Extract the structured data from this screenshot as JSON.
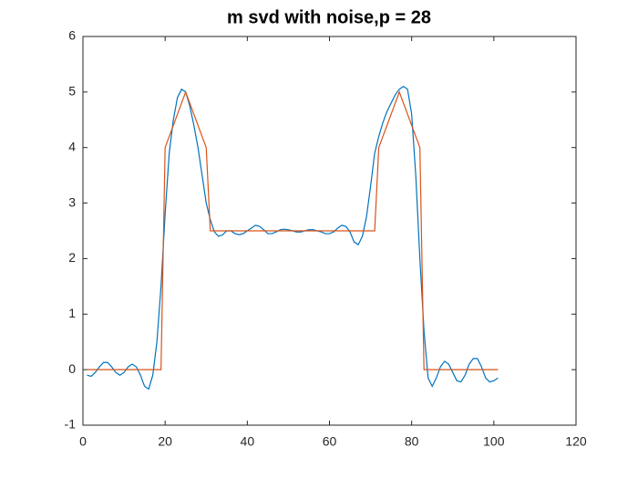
{
  "chart_data": {
    "type": "line",
    "title": "m svd with noise,p = 28",
    "x": [
      1,
      2,
      3,
      4,
      5,
      6,
      7,
      8,
      9,
      10,
      11,
      12,
      13,
      14,
      15,
      16,
      17,
      18,
      19,
      20,
      21,
      22,
      23,
      24,
      25,
      26,
      27,
      28,
      29,
      30,
      31,
      32,
      33,
      34,
      35,
      36,
      37,
      38,
      39,
      40,
      41,
      42,
      43,
      44,
      45,
      46,
      47,
      48,
      49,
      50,
      51,
      52,
      53,
      54,
      55,
      56,
      57,
      58,
      59,
      60,
      61,
      62,
      63,
      64,
      65,
      66,
      67,
      68,
      69,
      70,
      71,
      72,
      73,
      74,
      75,
      76,
      77,
      78,
      79,
      80,
      81,
      82,
      83,
      84,
      85,
      86,
      87,
      88,
      89,
      90,
      91,
      92,
      93,
      94,
      95,
      96,
      97,
      98,
      99,
      100,
      101
    ],
    "series": [
      {
        "color": "#0072BD",
        "values": [
          -0.1,
          -0.12,
          -0.05,
          0.05,
          0.13,
          0.13,
          0.05,
          -0.05,
          -0.1,
          -0.05,
          0.05,
          0.1,
          0.05,
          -0.1,
          -0.3,
          -0.35,
          -0.1,
          0.5,
          1.5,
          2.8,
          3.9,
          4.5,
          4.9,
          5.05,
          5.0,
          4.75,
          4.4,
          4.0,
          3.5,
          3.0,
          2.7,
          2.48,
          2.4,
          2.43,
          2.5,
          2.5,
          2.45,
          2.43,
          2.45,
          2.5,
          2.55,
          2.6,
          2.58,
          2.52,
          2.45,
          2.45,
          2.48,
          2.52,
          2.53,
          2.52,
          2.5,
          2.48,
          2.48,
          2.5,
          2.52,
          2.52,
          2.5,
          2.48,
          2.45,
          2.45,
          2.48,
          2.55,
          2.6,
          2.58,
          2.48,
          2.3,
          2.25,
          2.4,
          2.75,
          3.3,
          3.9,
          4.2,
          4.45,
          4.65,
          4.8,
          4.95,
          5.05,
          5.1,
          5.05,
          4.6,
          3.5,
          2.0,
          0.7,
          -0.15,
          -0.3,
          -0.15,
          0.05,
          0.15,
          0.1,
          -0.05,
          -0.2,
          -0.22,
          -0.1,
          0.1,
          0.2,
          0.2,
          0.05,
          -0.15,
          -0.22,
          -0.2,
          -0.15
        ]
      },
      {
        "color": "#D95319",
        "values": [
          0,
          0,
          0,
          0,
          0,
          0,
          0,
          0,
          0,
          0,
          0,
          0,
          0,
          0,
          0,
          0,
          0,
          0,
          0,
          4,
          4.2,
          4.4,
          4.6,
          4.8,
          5,
          4.8,
          4.6,
          4.4,
          4.2,
          4,
          2.5,
          2.5,
          2.5,
          2.5,
          2.5,
          2.5,
          2.5,
          2.5,
          2.5,
          2.5,
          2.5,
          2.5,
          2.5,
          2.5,
          2.5,
          2.5,
          2.5,
          2.5,
          2.5,
          2.5,
          2.5,
          2.5,
          2.5,
          2.5,
          2.5,
          2.5,
          2.5,
          2.5,
          2.5,
          2.5,
          2.5,
          2.5,
          2.5,
          2.5,
          2.5,
          2.5,
          2.5,
          2.5,
          2.5,
          2.5,
          2.5,
          4,
          4.2,
          4.4,
          4.6,
          4.8,
          5,
          4.8,
          4.6,
          4.4,
          4.2,
          4,
          0,
          0,
          0,
          0,
          0,
          0,
          0,
          0,
          0,
          0,
          0,
          0,
          0,
          0,
          0,
          0,
          0,
          0,
          0
        ]
      }
    ],
    "xlim": [
      0,
      120
    ],
    "xticks": [
      0,
      20,
      40,
      60,
      80,
      100,
      120
    ],
    "ylim": [
      -1,
      6
    ],
    "yticks": [
      -1,
      0,
      1,
      2,
      3,
      4,
      5,
      6
    ]
  }
}
